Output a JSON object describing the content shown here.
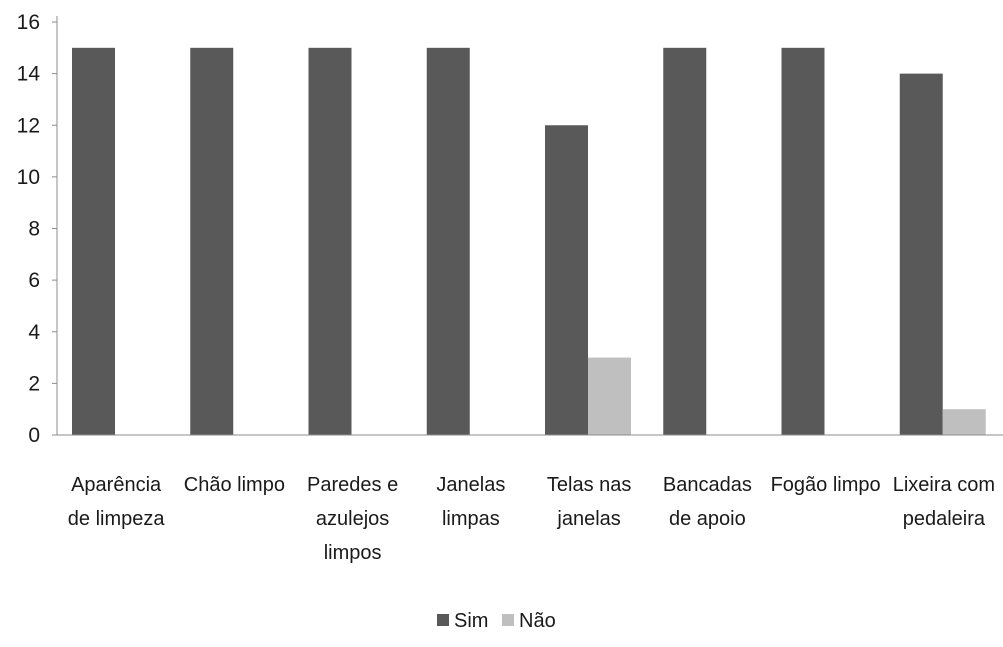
{
  "chart_data": {
    "type": "bar",
    "categories": [
      [
        "Aparência",
        "de limpeza"
      ],
      [
        "Chão limpo"
      ],
      [
        "Paredes e",
        "azulejos",
        "limpos"
      ],
      [
        "Janelas",
        "limpas"
      ],
      [
        "Telas nas",
        "janelas"
      ],
      [
        "Bancadas",
        "de apoio"
      ],
      [
        "Fogão limpo"
      ],
      [
        "Lixeira com",
        "pedaleira"
      ]
    ],
    "series": [
      {
        "name": "Sim",
        "color": "#595959",
        "values": [
          15,
          15,
          15,
          15,
          12,
          15,
          15,
          14
        ]
      },
      {
        "name": "Não",
        "color": "#bfbfbf",
        "values": [
          0,
          0,
          0,
          0,
          3,
          0,
          0,
          1
        ]
      }
    ],
    "y_ticks": [
      "0",
      "2",
      "4",
      "6",
      "8",
      "10",
      "12",
      "14",
      "16"
    ],
    "ylim": [
      0,
      16
    ],
    "grid": false,
    "legend_position": "bottom"
  }
}
